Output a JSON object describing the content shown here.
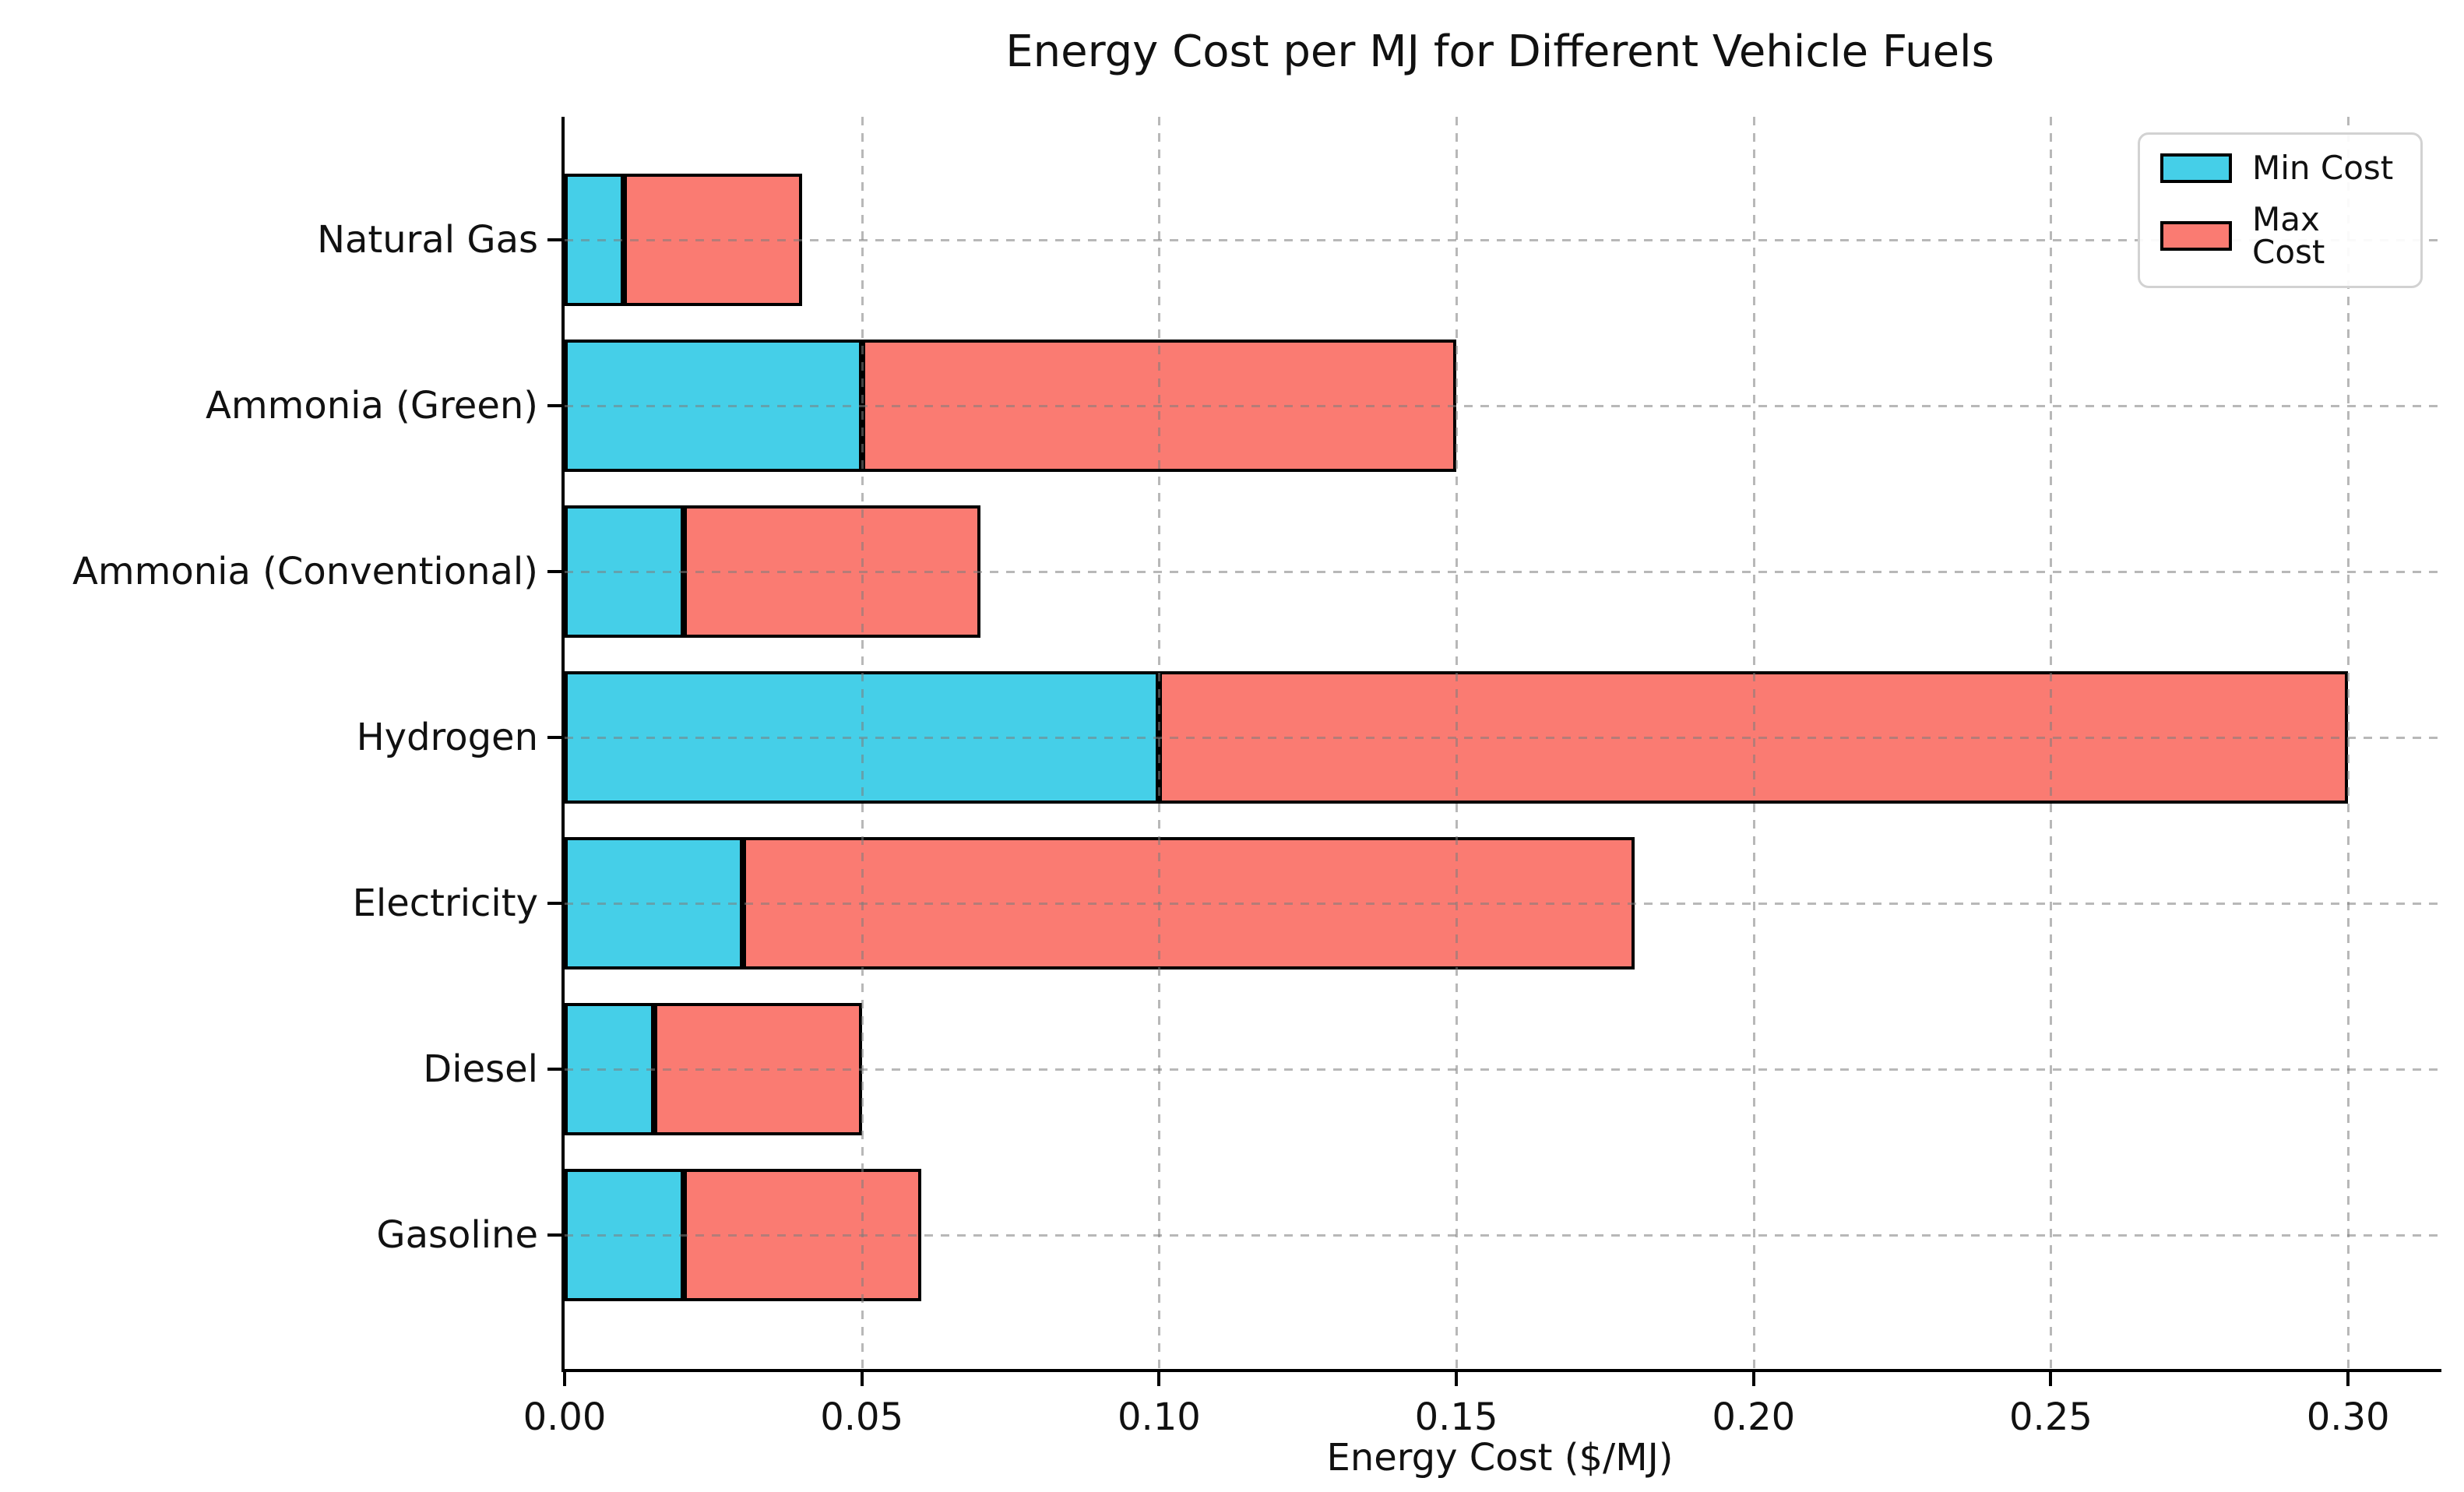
{
  "chart_data": {
    "type": "bar",
    "orientation": "horizontal",
    "stacked_range": "cyan segment spans 0 to min cost; red segment spans min cost to max cost",
    "title": "Energy Cost per MJ for Different Vehicle Fuels",
    "xlabel": "Energy Cost ($/MJ)",
    "categories": [
      "Natural Gas",
      "Ammonia (Green)",
      "Ammonia (Conventional)",
      "Hydrogen",
      "Electricity",
      "Diesel",
      "Gasoline"
    ],
    "series": [
      {
        "name": "Min Cost",
        "color": "#45CFE8",
        "values": [
          0.01,
          0.05,
          0.02,
          0.1,
          0.03,
          0.015,
          0.02
        ]
      },
      {
        "name": "Max Cost",
        "color": "#FA7B72",
        "values": [
          0.04,
          0.15,
          0.07,
          0.3,
          0.18,
          0.05,
          0.06
        ]
      }
    ],
    "xlim": [
      0,
      0.3157
    ],
    "xticks": [
      "0.00",
      "0.05",
      "0.10",
      "0.15",
      "0.20",
      "0.25",
      "0.30"
    ],
    "grid": true,
    "grid_style": "dashed gray, horizontal and vertical",
    "legend_position": "upper right",
    "colors": {
      "edge": "#000000",
      "grid": "#7d7d7d",
      "background": "#ffffff"
    }
  }
}
